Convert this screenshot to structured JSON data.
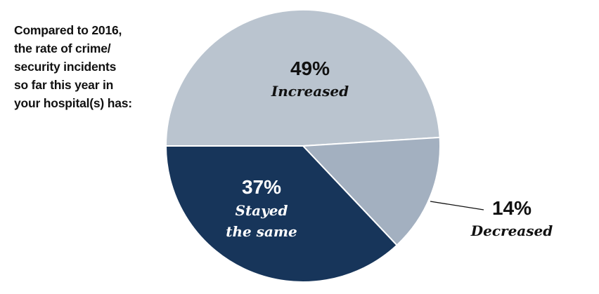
{
  "question": {
    "lines": [
      "Compared to 2016,",
      "the rate of crime/",
      "security incidents",
      "so far this year in",
      "your hospital(s) has:"
    ]
  },
  "chart_data": {
    "type": "pie",
    "title": "",
    "slices": [
      {
        "label": "Increased",
        "value": 49,
        "value_label": "49%",
        "label_lines": [
          "Increased"
        ],
        "color": "#bac4cf",
        "text_color": "#111111"
      },
      {
        "label": "Decreased",
        "value": 14,
        "value_label": "14%",
        "label_lines": [
          "Decreased"
        ],
        "color": "#a3b0c0",
        "text_color": "#111111",
        "label_outside": true
      },
      {
        "label": "Stayed the same",
        "value": 37,
        "value_label": "37%",
        "label_lines": [
          "Stayed",
          "the same"
        ],
        "color": "#17355a",
        "text_color": "#ffffff"
      }
    ],
    "start_angle_deg": 180,
    "direction": "clockwise",
    "legend": "none"
  }
}
